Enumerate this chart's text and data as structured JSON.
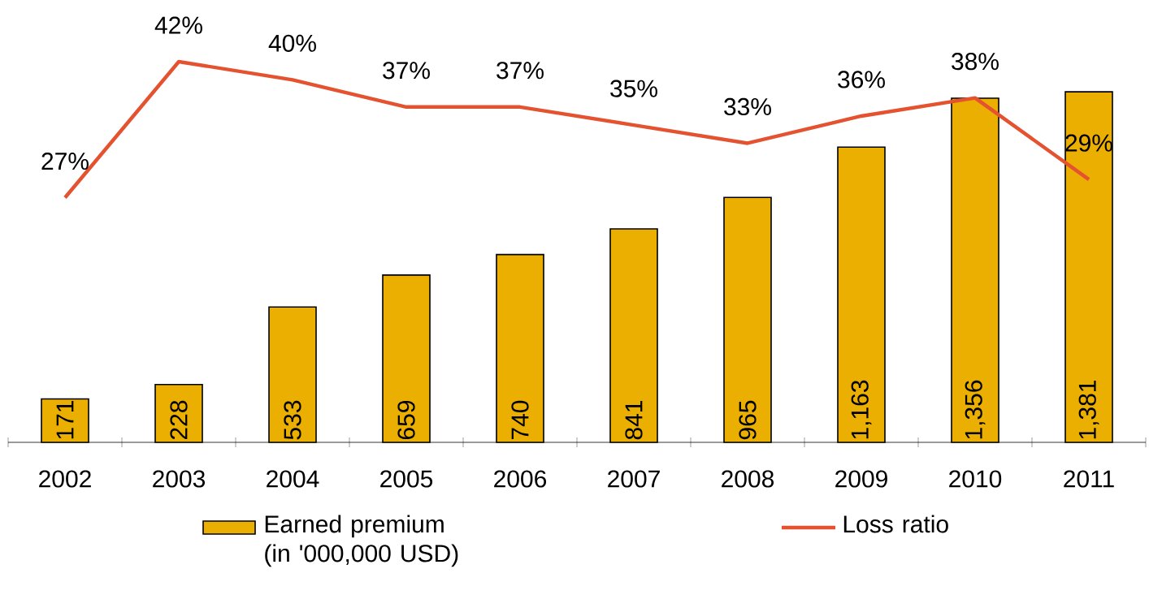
{
  "chart_data": {
    "type": "bar",
    "categories": [
      "2002",
      "2003",
      "2004",
      "2005",
      "2006",
      "2007",
      "2008",
      "2009",
      "2010",
      "2011"
    ],
    "series": [
      {
        "name": "Earned premium (in '000,000 USD)",
        "color": "#eaaf00",
        "values": [
          171,
          228,
          533,
          659,
          740,
          841,
          965,
          1163,
          1356,
          1381
        ],
        "value_labels": [
          "171",
          "228",
          "533",
          "659",
          "740",
          "841",
          "965",
          "1,163",
          "1,356",
          "1,381"
        ]
      },
      {
        "name": "Loss ratio",
        "type": "line",
        "axis": "y2",
        "color": "#e4522f",
        "values": [
          27,
          42,
          40,
          37,
          37,
          35,
          33,
          36,
          38,
          29
        ],
        "value_labels": [
          "27%",
          "42%",
          "40%",
          "37%",
          "37%",
          "35%",
          "33%",
          "36%",
          "38%",
          "29%"
        ]
      }
    ],
    "legend": "bottom",
    "marker": "none"
  }
}
